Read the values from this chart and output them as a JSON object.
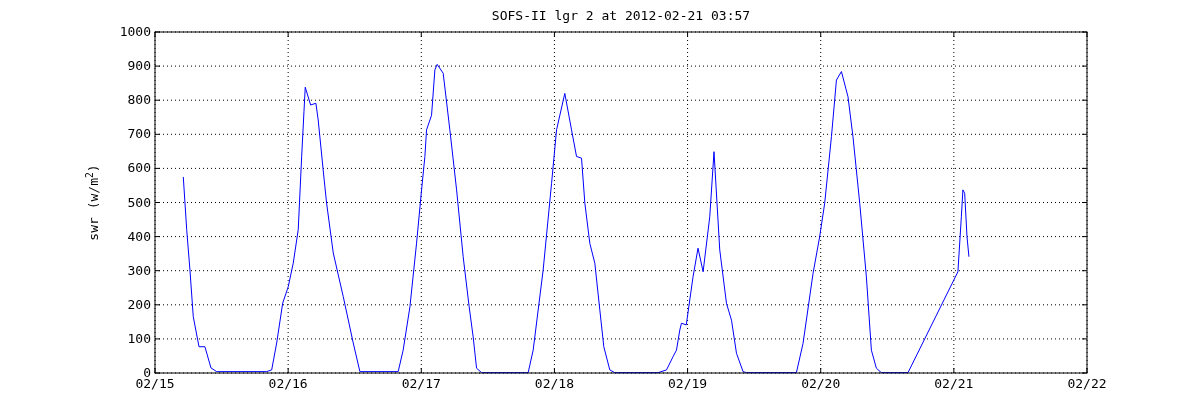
{
  "chart_data": {
    "type": "line",
    "title": "SOFS-II lgr 2 at 2012-02-21 03:57",
    "ylabel": "swr (w/m$^{2}$)",
    "x": [
      "2012-02-15T05:06",
      "2012-02-15T05:43",
      "2012-02-15T06:18",
      "2012-02-15T06:54",
      "2012-02-15T07:56",
      "2012-02-15T09:00",
      "2012-02-15T10:05",
      "2012-02-15T11:07",
      "2012-02-15T20:07",
      "2012-02-15T21:02",
      "2012-02-15T21:56",
      "2012-02-15T23:01",
      "2012-02-16T00:01",
      "2012-02-16T00:55",
      "2012-02-16T01:49",
      "2012-02-16T02:26",
      "2012-02-16T02:51",
      "2012-02-16T03:05",
      "2012-02-16T04:03",
      "2012-02-16T05:00",
      "2012-02-16T05:25",
      "2012-02-16T06:19",
      "2012-02-16T06:56",
      "2012-02-16T08:08",
      "2012-02-16T09:56",
      "2012-02-16T11:44",
      "2012-02-16T12:56",
      "2012-02-16T19:50",
      "2012-02-16T20:44",
      "2012-02-16T21:57",
      "2012-02-16T23:09",
      "2012-02-17T00:03",
      "2012-02-17T00:39",
      "2012-02-17T00:57",
      "2012-02-17T01:51",
      "2012-02-17T02:27",
      "2012-02-17T02:52",
      "2012-02-17T03:57",
      "2012-02-17T05:09",
      "2012-02-17T06:22",
      "2012-02-17T07:33",
      "2012-02-17T08:38",
      "2012-02-17T09:21",
      "2012-02-17T09:58",
      "2012-02-17T10:52",
      "2012-02-17T19:16",
      "2012-02-17T20:10",
      "2012-02-17T21:58",
      "2012-02-17T23:29",
      "2012-02-18T00:23",
      "2012-02-18T01:52",
      "2012-02-18T03:05",
      "2012-02-18T03:59",
      "2012-02-18T04:53",
      "2012-02-18T05:29",
      "2012-02-18T06:23",
      "2012-02-18T07:17",
      "2012-02-18T08:11",
      "2012-02-18T08:54",
      "2012-02-18T09:59",
      "2012-02-18T10:53",
      "2012-02-18T18:41",
      "2012-02-18T20:12",
      "2012-02-18T21:23",
      "2012-02-18T22:00",
      "2012-02-18T22:36",
      "2012-02-18T22:54",
      "2012-02-18T23:46",
      "2012-02-19T00:59",
      "2012-02-19T01:53",
      "2012-02-19T02:48",
      "2012-02-19T04:00",
      "2012-02-19T04:46",
      "2012-02-19T05:48",
      "2012-02-19T07:01",
      "2012-02-19T07:55",
      "2012-02-19T08:49",
      "2012-02-19T10:00",
      "2012-02-19T10:37",
      "2012-02-19T19:37",
      "2012-02-19T20:49",
      "2012-02-19T22:37",
      "2012-02-19T23:49",
      "2012-02-20T00:43",
      "2012-02-20T01:56",
      "2012-02-20T02:50",
      "2012-02-20T03:44",
      "2012-02-20T04:55",
      "2012-02-20T05:49",
      "2012-02-20T07:02",
      "2012-02-20T08:14",
      "2012-02-20T09:08",
      "2012-02-20T10:02",
      "2012-02-20T10:56",
      "2012-02-20T15:44",
      "2012-02-21T00:44",
      "2012-02-21T01:21",
      "2012-02-21T01:38",
      "2012-02-21T01:57",
      "2012-02-21T02:22",
      "2012-02-21T02:43"
    ],
    "series": [
      {
        "color": "#0000ff",
        "values": [
          575,
          420,
          302,
          165,
          77,
          77,
          15,
          4,
          4,
          9,
          88,
          205,
          253,
          322,
          420,
          634,
          766,
          838,
          786,
          791,
          742,
          595,
          498,
          352,
          224,
          88,
          4,
          4,
          67,
          194,
          381,
          537,
          635,
          713,
          756,
          889,
          905,
          879,
          713,
          537,
          341,
          194,
          106,
          14,
          1,
          1,
          67,
          302,
          556,
          713,
          820,
          713,
          635,
          630,
          498,
          380,
          322,
          185,
          77,
          9,
          1,
          1,
          9,
          48,
          67,
          126,
          146,
          141,
          282,
          366,
          297,
          458,
          649,
          361,
          204,
          155,
          58,
          4,
          1,
          1,
          87,
          292,
          400,
          498,
          693,
          859,
          884,
          810,
          693,
          498,
          282,
          67,
          14,
          1,
          1,
          297,
          458,
          537,
          527,
          400,
          341
        ]
      }
    ],
    "xlim": [
      "2012-02-15",
      "2012-02-22"
    ],
    "xticks": [
      {
        "value": "2012-02-15",
        "label": "02/15"
      },
      {
        "value": "2012-02-16",
        "label": "02/16"
      },
      {
        "value": "2012-02-17",
        "label": "02/17"
      },
      {
        "value": "2012-02-18",
        "label": "02/18"
      },
      {
        "value": "2012-02-19",
        "label": "02/19"
      },
      {
        "value": "2012-02-20",
        "label": "02/20"
      },
      {
        "value": "2012-02-21",
        "label": "02/21"
      },
      {
        "value": "2012-02-22",
        "label": "02/22"
      }
    ],
    "ylim": [
      0,
      1000
    ],
    "yticks": [
      0,
      100,
      200,
      300,
      400,
      500,
      600,
      700,
      800,
      900,
      1000
    ],
    "grid": true
  }
}
